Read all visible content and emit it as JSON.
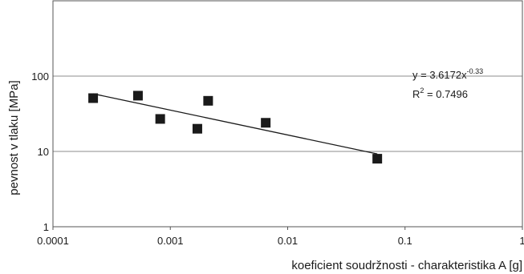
{
  "chart_data": {
    "type": "scatter",
    "xlabel": "koeficient soudržnosti - charakteristika A [g]",
    "ylabel": "pevnost v tlaku [MPa]",
    "x_scale": "log",
    "y_scale": "log",
    "xlim": [
      0.0001,
      1
    ],
    "ylim": [
      1,
      1000
    ],
    "x_ticks": [
      "0.0001",
      "0.001",
      "0.01",
      "0.1",
      "1"
    ],
    "y_ticks": [
      "1",
      "10",
      "100"
    ],
    "grid": "horizontal major lines",
    "points": [
      {
        "x": 0.00022,
        "y": 51
      },
      {
        "x": 0.00053,
        "y": 55
      },
      {
        "x": 0.00082,
        "y": 27
      },
      {
        "x": 0.0017,
        "y": 20
      },
      {
        "x": 0.0021,
        "y": 47
      },
      {
        "x": 0.0065,
        "y": 24
      },
      {
        "x": 0.058,
        "y": 8
      }
    ],
    "trendline": {
      "type": "power",
      "a": 3.6172,
      "b": -0.33,
      "x_range": [
        0.00022,
        0.058
      ]
    },
    "annotation": {
      "equation_prefix": "y = 3.6172x",
      "equation_exponent": "-0.33",
      "r2_prefix": "R",
      "r2_power": "2",
      "r2_value": " = 0.7496"
    },
    "colors": {
      "marker": "#1a1a1a",
      "trendline": "#1a1a1a",
      "grid": "#8c8c8c"
    }
  }
}
